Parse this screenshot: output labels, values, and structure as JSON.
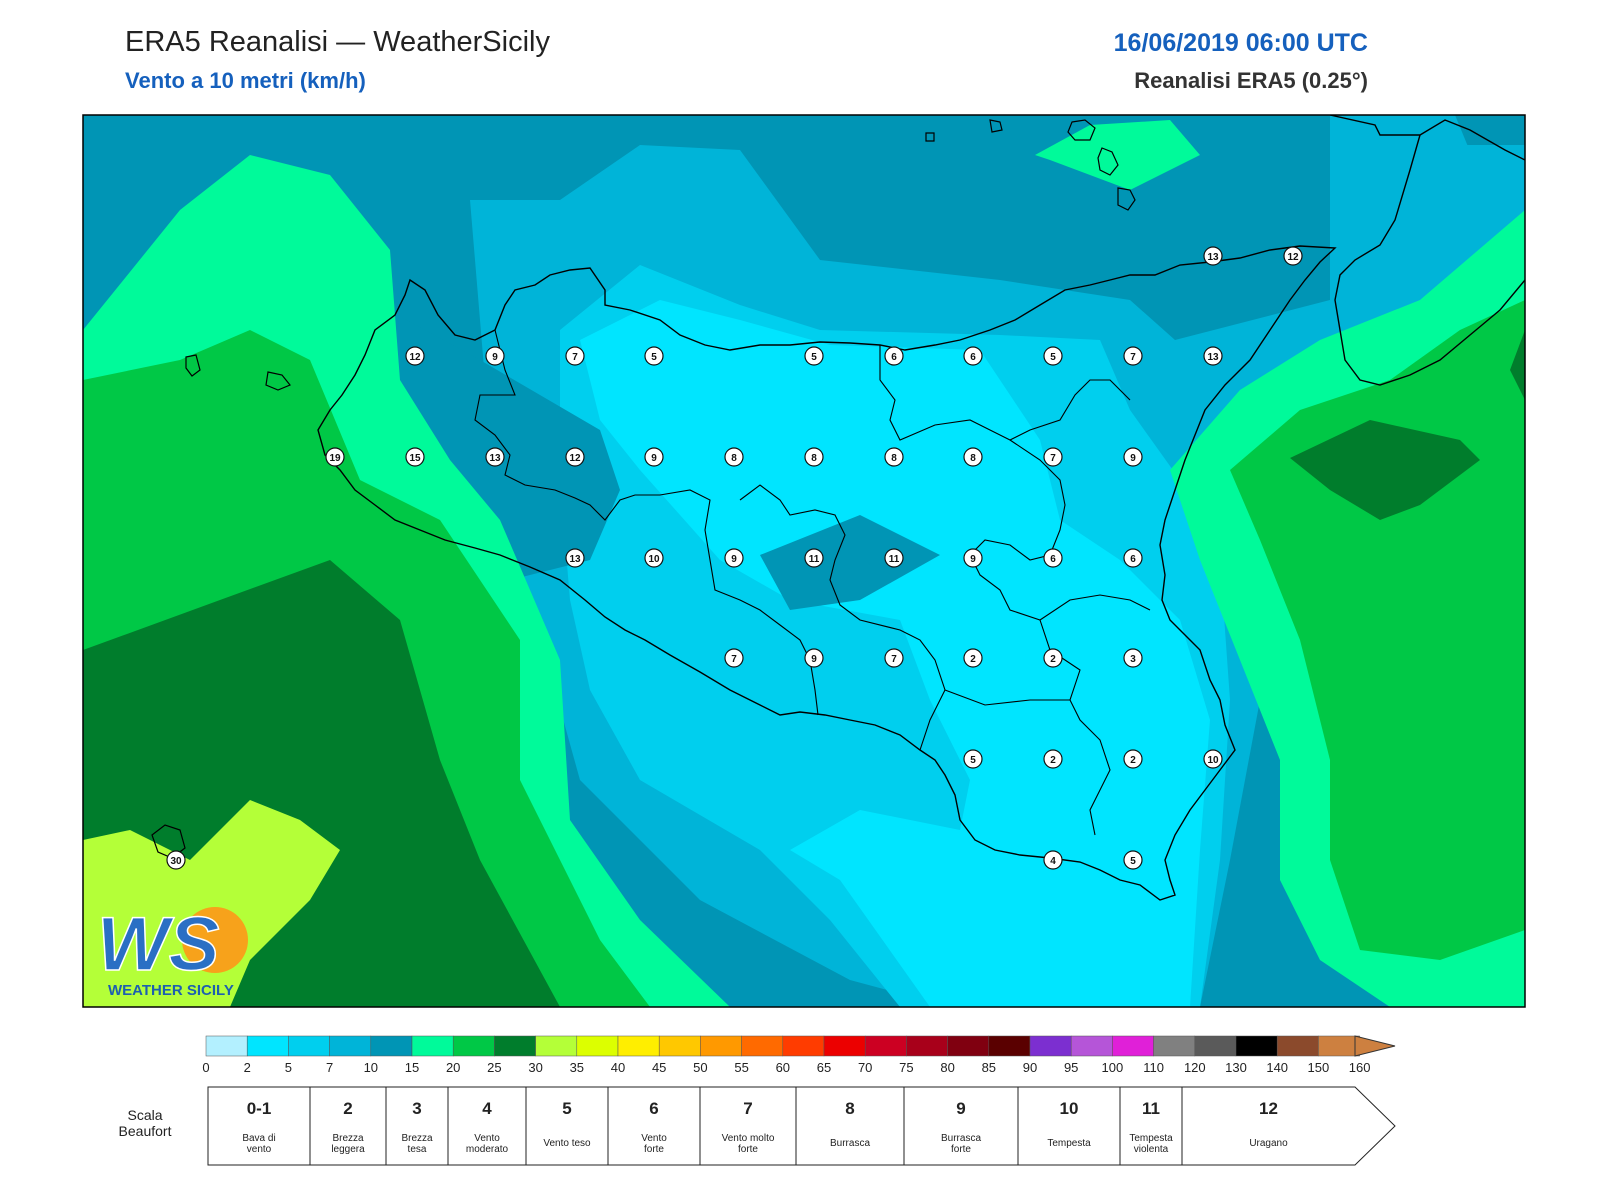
{
  "header": {
    "title": "ERA5 Reanalisi — WeatherSicily",
    "subtitle": "Vento a 10 metri (km/h)",
    "datetime": "16/06/2019 06:00 UTC",
    "model": "Reanalisi ERA5 (0.25°)"
  },
  "logo": {
    "text": "WEATHER SICILY",
    "letters": "WS"
  },
  "colors": {
    "zone_0_2": "#b3f0ff",
    "zone_2_5": "#00e5ff",
    "zone_5_7": "#00cfee",
    "zone_7_10": "#00b4d8",
    "zone_10_15": "#0095b5",
    "zone_15_20": "#00fa9a",
    "zone_20_25": "#00c846",
    "zone_25_30": "#007d2c",
    "zone_30_35": "#b4ff38",
    "coastline": "#000000"
  },
  "station_values": [
    {
      "value": 12
    },
    {
      "value": 13
    },
    {
      "value": 12
    },
    {
      "value": 9
    },
    {
      "value": 7
    },
    {
      "value": 5
    },
    {
      "value": 5
    },
    {
      "value": 6
    },
    {
      "value": 6
    },
    {
      "value": 5
    },
    {
      "value": 7
    },
    {
      "value": 13
    },
    {
      "value": 19
    },
    {
      "value": 15
    },
    {
      "value": 13
    },
    {
      "value": 12
    },
    {
      "value": 9
    },
    {
      "value": 8
    },
    {
      "value": 8
    },
    {
      "value": 8
    },
    {
      "value": 8
    },
    {
      "value": 7
    },
    {
      "value": 9
    },
    {
      "value": 13
    },
    {
      "value": 10
    },
    {
      "value": 9
    },
    {
      "value": 11
    },
    {
      "value": 11
    },
    {
      "value": 9
    },
    {
      "value": 6
    },
    {
      "value": 6
    },
    {
      "value": 7
    },
    {
      "value": 9
    },
    {
      "value": 7
    },
    {
      "value": 2
    },
    {
      "value": 2
    },
    {
      "value": 3
    },
    {
      "value": 5
    },
    {
      "value": 2
    },
    {
      "value": 2
    },
    {
      "value": 10
    },
    {
      "value": 30
    },
    {
      "value": 4
    },
    {
      "value": 5
    }
  ],
  "colorbar": {
    "ticks": [
      "0",
      "2",
      "5",
      "7",
      "10",
      "15",
      "20",
      "25",
      "30",
      "35",
      "40",
      "45",
      "50",
      "55",
      "60",
      "65",
      "70",
      "75",
      "80",
      "85",
      "90",
      "95",
      "100",
      "110",
      "120",
      "130",
      "140",
      "150",
      "160"
    ],
    "colors": [
      "#b3f0ff",
      "#00e5ff",
      "#00cfee",
      "#00b4d8",
      "#0095b5",
      "#00fa9a",
      "#00c846",
      "#007d2c",
      "#b4ff38",
      "#dcff00",
      "#ffee00",
      "#ffc800",
      "#ff9900",
      "#ff6a00",
      "#ff3c00",
      "#ec0000",
      "#cc0022",
      "#a8001a",
      "#800010",
      "#5a0000",
      "#7c2fd0",
      "#b555d8",
      "#e020d8",
      "#808080",
      "#5a5a5a",
      "#000000",
      "#8b4a2c",
      "#cd8040"
    ]
  },
  "beaufort": {
    "label_line1": "Scala",
    "label_line2": "Beaufort",
    "cells": [
      {
        "num": "0-1",
        "desc1": "Bava di",
        "desc2": "vento"
      },
      {
        "num": "2",
        "desc1": "Brezza",
        "desc2": "leggera"
      },
      {
        "num": "3",
        "desc1": "Brezza",
        "desc2": "tesa"
      },
      {
        "num": "4",
        "desc1": "Vento",
        "desc2": "moderato"
      },
      {
        "num": "5",
        "desc1": "Vento teso",
        "desc2": ""
      },
      {
        "num": "6",
        "desc1": "Vento",
        "desc2": "forte"
      },
      {
        "num": "7",
        "desc1": "Vento molto",
        "desc2": "forte"
      },
      {
        "num": "8",
        "desc1": "Burrasca",
        "desc2": ""
      },
      {
        "num": "9",
        "desc1": "Burrasca",
        "desc2": "forte"
      },
      {
        "num": "10",
        "desc1": "Tempesta",
        "desc2": ""
      },
      {
        "num": "11",
        "desc1": "Tempesta",
        "desc2": "violenta"
      },
      {
        "num": "12",
        "desc1": "Uragano",
        "desc2": ""
      }
    ]
  }
}
